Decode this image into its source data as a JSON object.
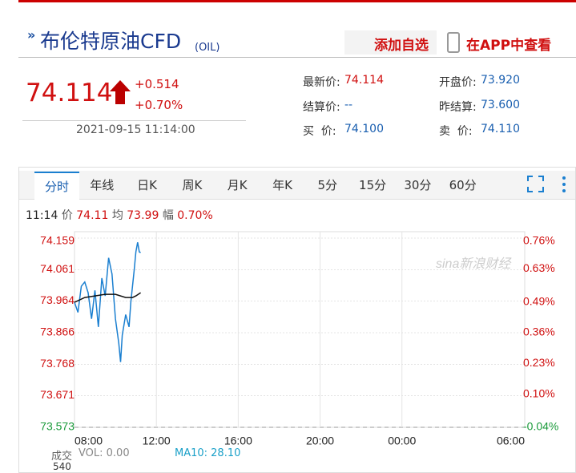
{
  "header": {
    "title": "布伦特原油CFD",
    "code": "(OIL)",
    "add_watch": "添加自选",
    "app_view": "在APP中查看"
  },
  "quote": {
    "price": "74.114",
    "change": "+0.514",
    "change_pct": "+0.70%",
    "time": "2021-09-15 11:14:00",
    "fields": [
      {
        "label": "最新价:",
        "value": "74.114"
      },
      {
        "label": "开盘价:",
        "value": "73.920"
      },
      {
        "label": "结算价:",
        "value": "--"
      },
      {
        "label": "昨结算:",
        "value": "73.600"
      },
      {
        "label": "买  价:",
        "value": "74.100"
      },
      {
        "label": "卖  价:",
        "value": "74.110"
      }
    ]
  },
  "tabs": [
    "分时",
    "年线",
    "日K",
    "周K",
    "月K",
    "年K",
    "5分",
    "15分",
    "30分",
    "60分"
  ],
  "info_line": {
    "time": "11:14",
    "price_label": "价",
    "price": "74.11",
    "avg_label": "均",
    "avg": "73.99",
    "range_label": "幅",
    "range": "0.70%"
  },
  "chart_data": {
    "type": "line",
    "watermark": "sina新浪财经",
    "xlim": [
      "08:00",
      "06:00"
    ],
    "xticks": [
      "08:00",
      "12:00",
      "16:00",
      "20:00",
      "00:00",
      "06:00"
    ],
    "ylim": [
      73.573,
      74.159
    ],
    "yticks": [
      74.159,
      74.061,
      73.964,
      73.866,
      73.768,
      73.671,
      73.573
    ],
    "y2lim": [
      -0.04,
      0.76
    ],
    "y2ticks": [
      {
        "value": 0.76,
        "label": "0.76%"
      },
      {
        "value": 0.63,
        "label": "0.63%"
      },
      {
        "value": 0.49,
        "label": "0.49%"
      },
      {
        "value": 0.36,
        "label": "0.36%"
      },
      {
        "value": 0.23,
        "label": "0.23%"
      },
      {
        "value": 0.1,
        "label": "0.10%"
      },
      {
        "value": -0.04,
        "label": "-0.04%"
      }
    ],
    "grid": true,
    "series": [
      {
        "name": "价",
        "color": "#1a7fd0",
        "x": [
          "08:00",
          "08:10",
          "08:20",
          "08:30",
          "08:40",
          "08:50",
          "09:00",
          "09:10",
          "09:20",
          "09:30",
          "09:40",
          "09:50",
          "10:00",
          "10:10",
          "10:15",
          "10:20",
          "10:30",
          "10:40",
          "10:45",
          "10:50",
          "10:55",
          "11:00",
          "11:05",
          "11:10",
          "11:14"
        ],
        "values": [
          73.96,
          73.929,
          74.01,
          74.023,
          73.99,
          73.909,
          73.997,
          73.884,
          74.035,
          73.98,
          74.098,
          74.048,
          73.909,
          73.833,
          73.775,
          73.858,
          73.922,
          73.884,
          73.96,
          74.01,
          74.06,
          74.116,
          74.146,
          74.116,
          74.114
        ]
      },
      {
        "name": "均",
        "color": "#111111",
        "x": [
          "08:00",
          "08:30",
          "09:00",
          "09:30",
          "10:00",
          "10:30",
          "10:50",
          "11:00",
          "11:14"
        ],
        "values": [
          73.96,
          73.975,
          73.98,
          73.985,
          73.985,
          73.975,
          73.975,
          73.98,
          73.99
        ]
      }
    ]
  },
  "volume": {
    "label": "成交",
    "vol": "VOL: 0.00",
    "ma10": "MA10: 28.10",
    "tick": "540"
  }
}
